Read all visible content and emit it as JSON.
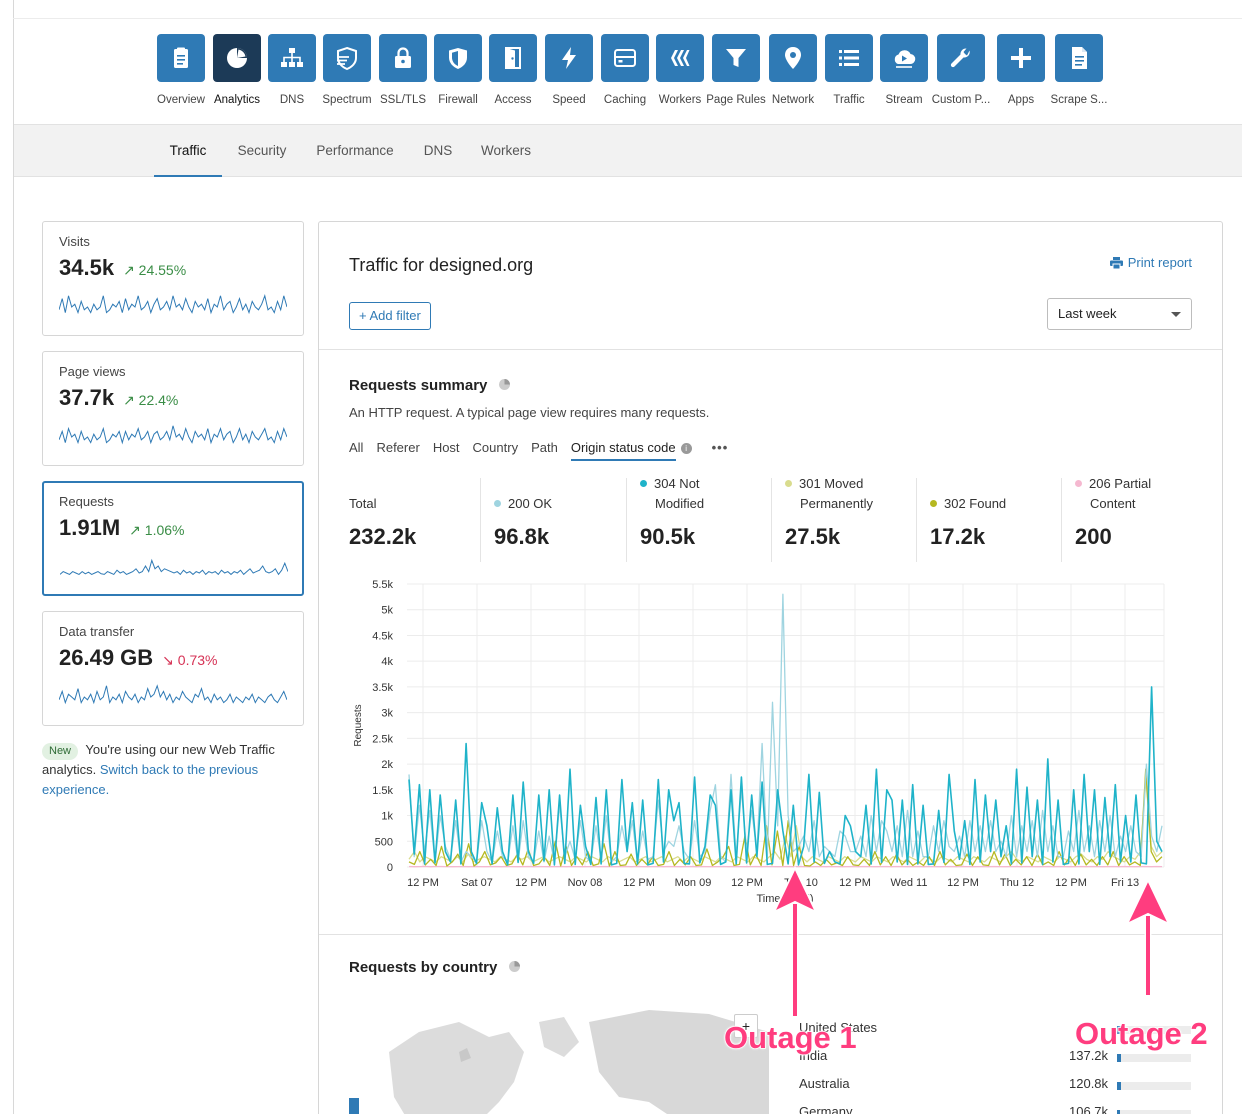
{
  "app_nav": [
    {
      "label": "Overview",
      "icon": "clipboard-icon",
      "active": false
    },
    {
      "label": "Analytics",
      "icon": "pie-chart-icon",
      "active": true
    },
    {
      "label": "DNS",
      "icon": "network-tree-icon",
      "active": false
    },
    {
      "label": "Spectrum",
      "icon": "spectrum-shield-icon",
      "active": false
    },
    {
      "label": "SSL/TLS",
      "icon": "lock-icon",
      "active": false
    },
    {
      "label": "Firewall",
      "icon": "shield-icon",
      "active": false
    },
    {
      "label": "Access",
      "icon": "door-icon",
      "active": false
    },
    {
      "label": "Speed",
      "icon": "lightning-icon",
      "active": false
    },
    {
      "label": "Caching",
      "icon": "server-drive-icon",
      "active": false
    },
    {
      "label": "Workers",
      "icon": "workers-icon",
      "active": false
    },
    {
      "label": "Page Rules",
      "icon": "filter-funnel-icon",
      "active": false
    },
    {
      "label": "Network",
      "icon": "location-pin-icon",
      "active": false
    },
    {
      "label": "Traffic",
      "icon": "list-icon",
      "active": false
    },
    {
      "label": "Stream",
      "icon": "cloud-play-icon",
      "active": false
    },
    {
      "label": "Custom P...",
      "icon": "wrench-icon",
      "active": false
    },
    {
      "label": "Apps",
      "icon": "plus-icon",
      "active": false
    },
    {
      "label": "Scrape S...",
      "icon": "document-icon",
      "active": false
    }
  ],
  "sub_tabs": [
    {
      "label": "Traffic",
      "active": true
    },
    {
      "label": "Security",
      "active": false
    },
    {
      "label": "Performance",
      "active": false
    },
    {
      "label": "DNS",
      "active": false
    },
    {
      "label": "Workers",
      "active": false
    }
  ],
  "stat_cards": [
    {
      "label": "Visits",
      "value": "34.5k",
      "delta": "↗ 24.55%",
      "trend": "up"
    },
    {
      "label": "Page views",
      "value": "37.7k",
      "delta": "↗ 22.4%",
      "trend": "up"
    },
    {
      "label": "Requests",
      "value": "1.91M",
      "delta": "↗ 1.06%",
      "trend": "up"
    },
    {
      "label": "Data transfer",
      "value": "26.49 GB",
      "delta": "↘ 0.73%",
      "trend": "down"
    }
  ],
  "note": {
    "badge": "New",
    "text": "You're using our new Web Traffic analytics.",
    "link": "Switch back to the previous experience."
  },
  "panel": {
    "title": "Traffic for designed.org",
    "print_label": "Print report",
    "add_filter_label": "+ Add filter",
    "range_value": "Last week"
  },
  "requests_summary": {
    "title": "Requests summary",
    "subtitle": "An HTTP request. A typical page view requires many requests.",
    "filter_tabs": [
      {
        "label": "All",
        "active": false
      },
      {
        "label": "Referer",
        "active": false
      },
      {
        "label": "Host",
        "active": false
      },
      {
        "label": "Country",
        "active": false
      },
      {
        "label": "Path",
        "active": false
      },
      {
        "label": "Origin status code",
        "active": true
      }
    ],
    "more_label": "•••",
    "stats": [
      {
        "line1": "Total",
        "line2": "",
        "value": "232.2k",
        "color": ""
      },
      {
        "line1": "200 OK",
        "line2": "",
        "value": "96.8k",
        "color": "#9fd4e0"
      },
      {
        "line1": "304 Not",
        "line2": "Modified",
        "value": "90.5k",
        "color": "#1fb3c9"
      },
      {
        "line1": "301 Moved",
        "line2": "Permanently",
        "value": "27.5k",
        "color": "#d9dc8e"
      },
      {
        "line1": "302 Found",
        "line2": "",
        "value": "17.2k",
        "color": "#b5b820"
      },
      {
        "line1": "206 Partial",
        "line2": "Content",
        "value": "200",
        "color": "#f5b8d0"
      }
    ]
  },
  "chart_data": {
    "type": "line",
    "ylabel": "Requests",
    "xlabel": "Time (local)",
    "ylim": [
      0,
      5500
    ],
    "y_ticks": [
      "0",
      "500",
      "1k",
      "1.5k",
      "2k",
      "2.5k",
      "3k",
      "3.5k",
      "4k",
      "4.5k",
      "5k",
      "5.5k"
    ],
    "x_ticks": [
      "12 PM",
      "Sat 07",
      "12 PM",
      "Nov 08",
      "12 PM",
      "Mon 09",
      "12 PM",
      "Tue 10",
      "12 PM",
      "Wed 11",
      "12 PM",
      "Thu 12",
      "12 PM",
      "Fri 13"
    ],
    "series": [
      {
        "name": "304 Not Modified",
        "color": "#1fb3c9",
        "values": [
          1700,
          250,
          1600,
          60,
          1500,
          80,
          1400,
          300,
          100,
          1300,
          60,
          2400,
          300,
          70,
          1250,
          800,
          60,
          1150,
          300,
          40,
          1400,
          90,
          1650,
          300,
          70,
          1400,
          120,
          1500,
          40,
          1400,
          70,
          1900,
          50,
          1200,
          400,
          50,
          1350,
          60,
          1500,
          40,
          70,
          1700,
          300,
          1250,
          60,
          1300,
          40,
          70,
          1700,
          100,
          1500,
          900,
          1250,
          70,
          60,
          1750,
          80,
          400,
          1400,
          1200,
          50,
          100,
          1500,
          60,
          1750,
          80,
          1400,
          200,
          1650,
          50,
          70,
          1500,
          700,
          60,
          1200,
          40,
          400,
          1800,
          100,
          1450,
          70,
          300,
          100,
          60,
          1000,
          800,
          300,
          200,
          1200,
          60,
          1900,
          90,
          1500,
          1300,
          100,
          1300,
          50,
          1600,
          60,
          1200,
          50,
          60,
          1100,
          90,
          1800,
          700,
          150,
          900,
          50,
          1700,
          100,
          1400,
          300,
          1300,
          200,
          800,
          60,
          1900,
          80,
          1550,
          200,
          1300,
          50,
          2100,
          100,
          1300,
          50,
          70,
          1500,
          60,
          1800,
          300,
          1500,
          50,
          1350,
          200,
          1600,
          100,
          1000,
          100,
          1400,
          80,
          60,
          3500,
          500,
          300
        ]
      },
      {
        "name": "200 OK",
        "color": "#9fd4e0",
        "values": [
          1800,
          200,
          1200,
          300,
          1100,
          100,
          1000,
          400,
          150,
          900,
          100,
          300,
          200,
          100,
          900,
          300,
          100,
          700,
          200,
          100,
          800,
          100,
          900,
          200,
          100,
          700,
          100,
          600,
          100,
          1200,
          200,
          500,
          150,
          900,
          200,
          100,
          800,
          150,
          1000,
          100,
          200,
          800,
          300,
          900,
          100,
          700,
          150,
          200,
          1300,
          300,
          500,
          400,
          800,
          300,
          150,
          900,
          200,
          300,
          1100,
          1600,
          200,
          100,
          1800,
          200,
          1500,
          300,
          1100,
          300,
          2400,
          200,
          3200,
          800,
          5300,
          1000,
          300,
          400,
          600,
          300,
          900,
          200,
          400,
          300,
          200,
          700,
          600,
          300,
          300,
          600,
          200,
          1000,
          300,
          900,
          700,
          300,
          800,
          200,
          1100,
          200,
          700,
          200,
          200,
          800,
          300,
          900,
          400,
          300,
          600,
          200,
          900,
          300,
          800,
          300,
          900,
          300,
          500,
          200,
          1000,
          200,
          800,
          300,
          900,
          200,
          1100,
          300,
          800,
          200,
          200,
          700,
          300,
          1100,
          300,
          800,
          200,
          900,
          300,
          1000,
          200,
          600,
          300,
          800,
          300,
          200,
          2000,
          600,
          300,
          800
        ]
      },
      {
        "name": "301 Moved Permanently",
        "color": "#d9dc8e",
        "values": [
          150,
          300,
          100,
          200,
          150,
          100,
          200,
          150,
          100,
          200,
          100,
          250,
          100,
          150,
          200,
          150,
          100,
          200,
          150,
          100,
          200,
          150,
          200,
          100,
          150,
          200,
          100,
          150,
          200,
          150,
          100,
          200,
          150,
          100,
          200,
          150,
          100,
          200,
          150,
          100,
          150,
          200,
          100,
          150,
          200,
          100,
          150,
          200,
          100,
          150,
          200,
          100,
          200,
          150,
          100,
          200,
          150,
          100,
          200,
          150,
          100,
          200,
          150,
          100,
          200,
          150,
          100,
          200,
          300,
          150,
          600,
          200,
          800,
          200,
          100,
          200,
          150,
          100,
          200,
          150,
          100,
          200,
          150,
          100,
          200,
          150,
          100,
          200,
          150,
          100,
          200,
          150,
          100,
          200,
          150,
          100,
          200,
          150,
          100,
          200,
          150,
          100,
          200,
          150,
          100,
          200,
          150,
          100,
          200,
          150,
          100,
          200,
          300,
          150,
          100,
          200,
          150,
          100,
          200,
          150,
          100,
          200,
          150,
          100,
          200,
          250,
          150,
          100,
          200,
          150,
          300,
          200,
          150,
          100,
          200,
          150,
          300,
          1700,
          400,
          200,
          300
        ]
      },
      {
        "name": "302 Found",
        "color": "#b5b820",
        "values": [
          100,
          50,
          300,
          40,
          150,
          30,
          400,
          20,
          100,
          250,
          30,
          450,
          20,
          100,
          300,
          40,
          80,
          200,
          30,
          60,
          250,
          40,
          350,
          30,
          60,
          200,
          30,
          500,
          20,
          400,
          30,
          200,
          40,
          300,
          30,
          60,
          450,
          20,
          300,
          30,
          40,
          250,
          30,
          150,
          40,
          200,
          30,
          50,
          300,
          30,
          150,
          40,
          200,
          30,
          40,
          350,
          30,
          100,
          200,
          400,
          30,
          50,
          600,
          40,
          250,
          30,
          800,
          40,
          700,
          30,
          900,
          30,
          400,
          30,
          20,
          100,
          30,
          150,
          40,
          80,
          30,
          200,
          40,
          30,
          150,
          30,
          300,
          40,
          200,
          30,
          250,
          40,
          150,
          30,
          100,
          30,
          200,
          30,
          300,
          40,
          150,
          30,
          40,
          250,
          30,
          200,
          40,
          30,
          300,
          40,
          250,
          30,
          150,
          40,
          200,
          30,
          250,
          40,
          100,
          30,
          300,
          40,
          200,
          30,
          250,
          40,
          150,
          30,
          200,
          40,
          300,
          30,
          200,
          40,
          100,
          30,
          1900,
          300,
          100,
          200
        ]
      },
      {
        "name": "206 Partial Content",
        "color": "#f5b8d0",
        "values": [
          10,
          5,
          8,
          12,
          6,
          9,
          10,
          7,
          5,
          8,
          10,
          6,
          9,
          7,
          5,
          8,
          10,
          6,
          9,
          7,
          5,
          8,
          10,
          6,
          9,
          7,
          5,
          8,
          10,
          6,
          9,
          7,
          5,
          8,
          10,
          6,
          9,
          7,
          5,
          8,
          10,
          6,
          9,
          7,
          5,
          8,
          10,
          6,
          9,
          7,
          5,
          8,
          10,
          6,
          9,
          7,
          5,
          8,
          10,
          6,
          9,
          7,
          5,
          8,
          10,
          6,
          9,
          7,
          5,
          8,
          10,
          6,
          9,
          7,
          5,
          8,
          10,
          6,
          9,
          7,
          5,
          8,
          10,
          6,
          9,
          7,
          5,
          8,
          10,
          6,
          9,
          7,
          5,
          8,
          10,
          6,
          9,
          7,
          5,
          8,
          10,
          6,
          9,
          7,
          5,
          8,
          10,
          6,
          9,
          7,
          5,
          8,
          10,
          6,
          9,
          7,
          5,
          8,
          10,
          6,
          9,
          7,
          5,
          8,
          10,
          6,
          9,
          7,
          5,
          8,
          10,
          6,
          9,
          7,
          5,
          8,
          10,
          6,
          9,
          7
        ]
      }
    ]
  },
  "requests_by_country": {
    "title": "Requests by country",
    "zoom_label": "+",
    "rows": [
      {
        "name": "United States",
        "value": "",
        "share": 0.06
      },
      {
        "name": "India",
        "value": "137.2k",
        "share": 0.06
      },
      {
        "name": "Australia",
        "value": "120.8k",
        "share": 0.05
      },
      {
        "name": "Germany",
        "value": "106.7k",
        "share": 0.04
      }
    ]
  },
  "annotations": [
    {
      "label": "Outage 1",
      "color": "#ff3d7f"
    },
    {
      "label": "Outage 2",
      "color": "#ff3d7f"
    }
  ]
}
